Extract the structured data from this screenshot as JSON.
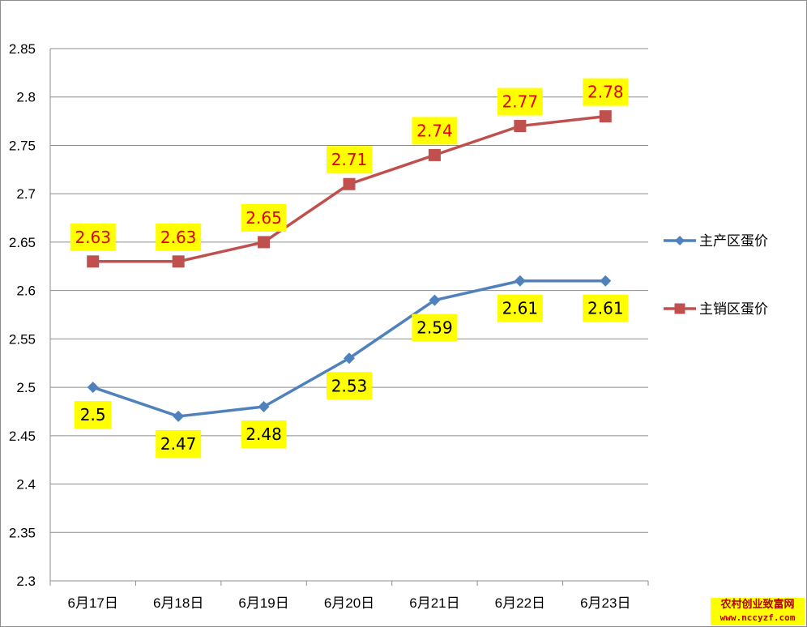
{
  "chart_data": {
    "type": "line",
    "title": "",
    "xlabel": "",
    "ylabel": "",
    "categories": [
      "6月17日",
      "6月18日",
      "6月19日",
      "6月20日",
      "6月21日",
      "6月22日",
      "6月23日"
    ],
    "ylim": [
      2.3,
      2.85
    ],
    "yticks": [
      "2.3",
      "2.35",
      "2.4",
      "2.45",
      "2.5",
      "2.55",
      "2.6",
      "2.65",
      "2.7",
      "2.75",
      "2.8",
      "2.85"
    ],
    "grid": true,
    "legend_position": "right",
    "series": [
      {
        "name": "主产区蛋价",
        "color": "#4f81bd",
        "marker": "diamond",
        "label_position": "below",
        "values": [
          2.5,
          2.47,
          2.48,
          2.53,
          2.59,
          2.61,
          2.61
        ],
        "labels": [
          "2.5",
          "2.47",
          "2.48",
          "2.53",
          "2.59",
          "2.61",
          "2.61"
        ],
        "label_color": "#000000"
      },
      {
        "name": "主销区蛋价",
        "color": "#c0504d",
        "marker": "square",
        "label_position": "above",
        "values": [
          2.63,
          2.63,
          2.65,
          2.71,
          2.74,
          2.77,
          2.78
        ],
        "labels": [
          "2.63",
          "2.63",
          "2.65",
          "2.71",
          "2.74",
          "2.77",
          "2.78"
        ],
        "label_color": "#e00000"
      }
    ],
    "label_background": "#ffff00"
  },
  "watermark": {
    "line1": "农村创业致富网",
    "line2": "www.nccyzf.com"
  }
}
